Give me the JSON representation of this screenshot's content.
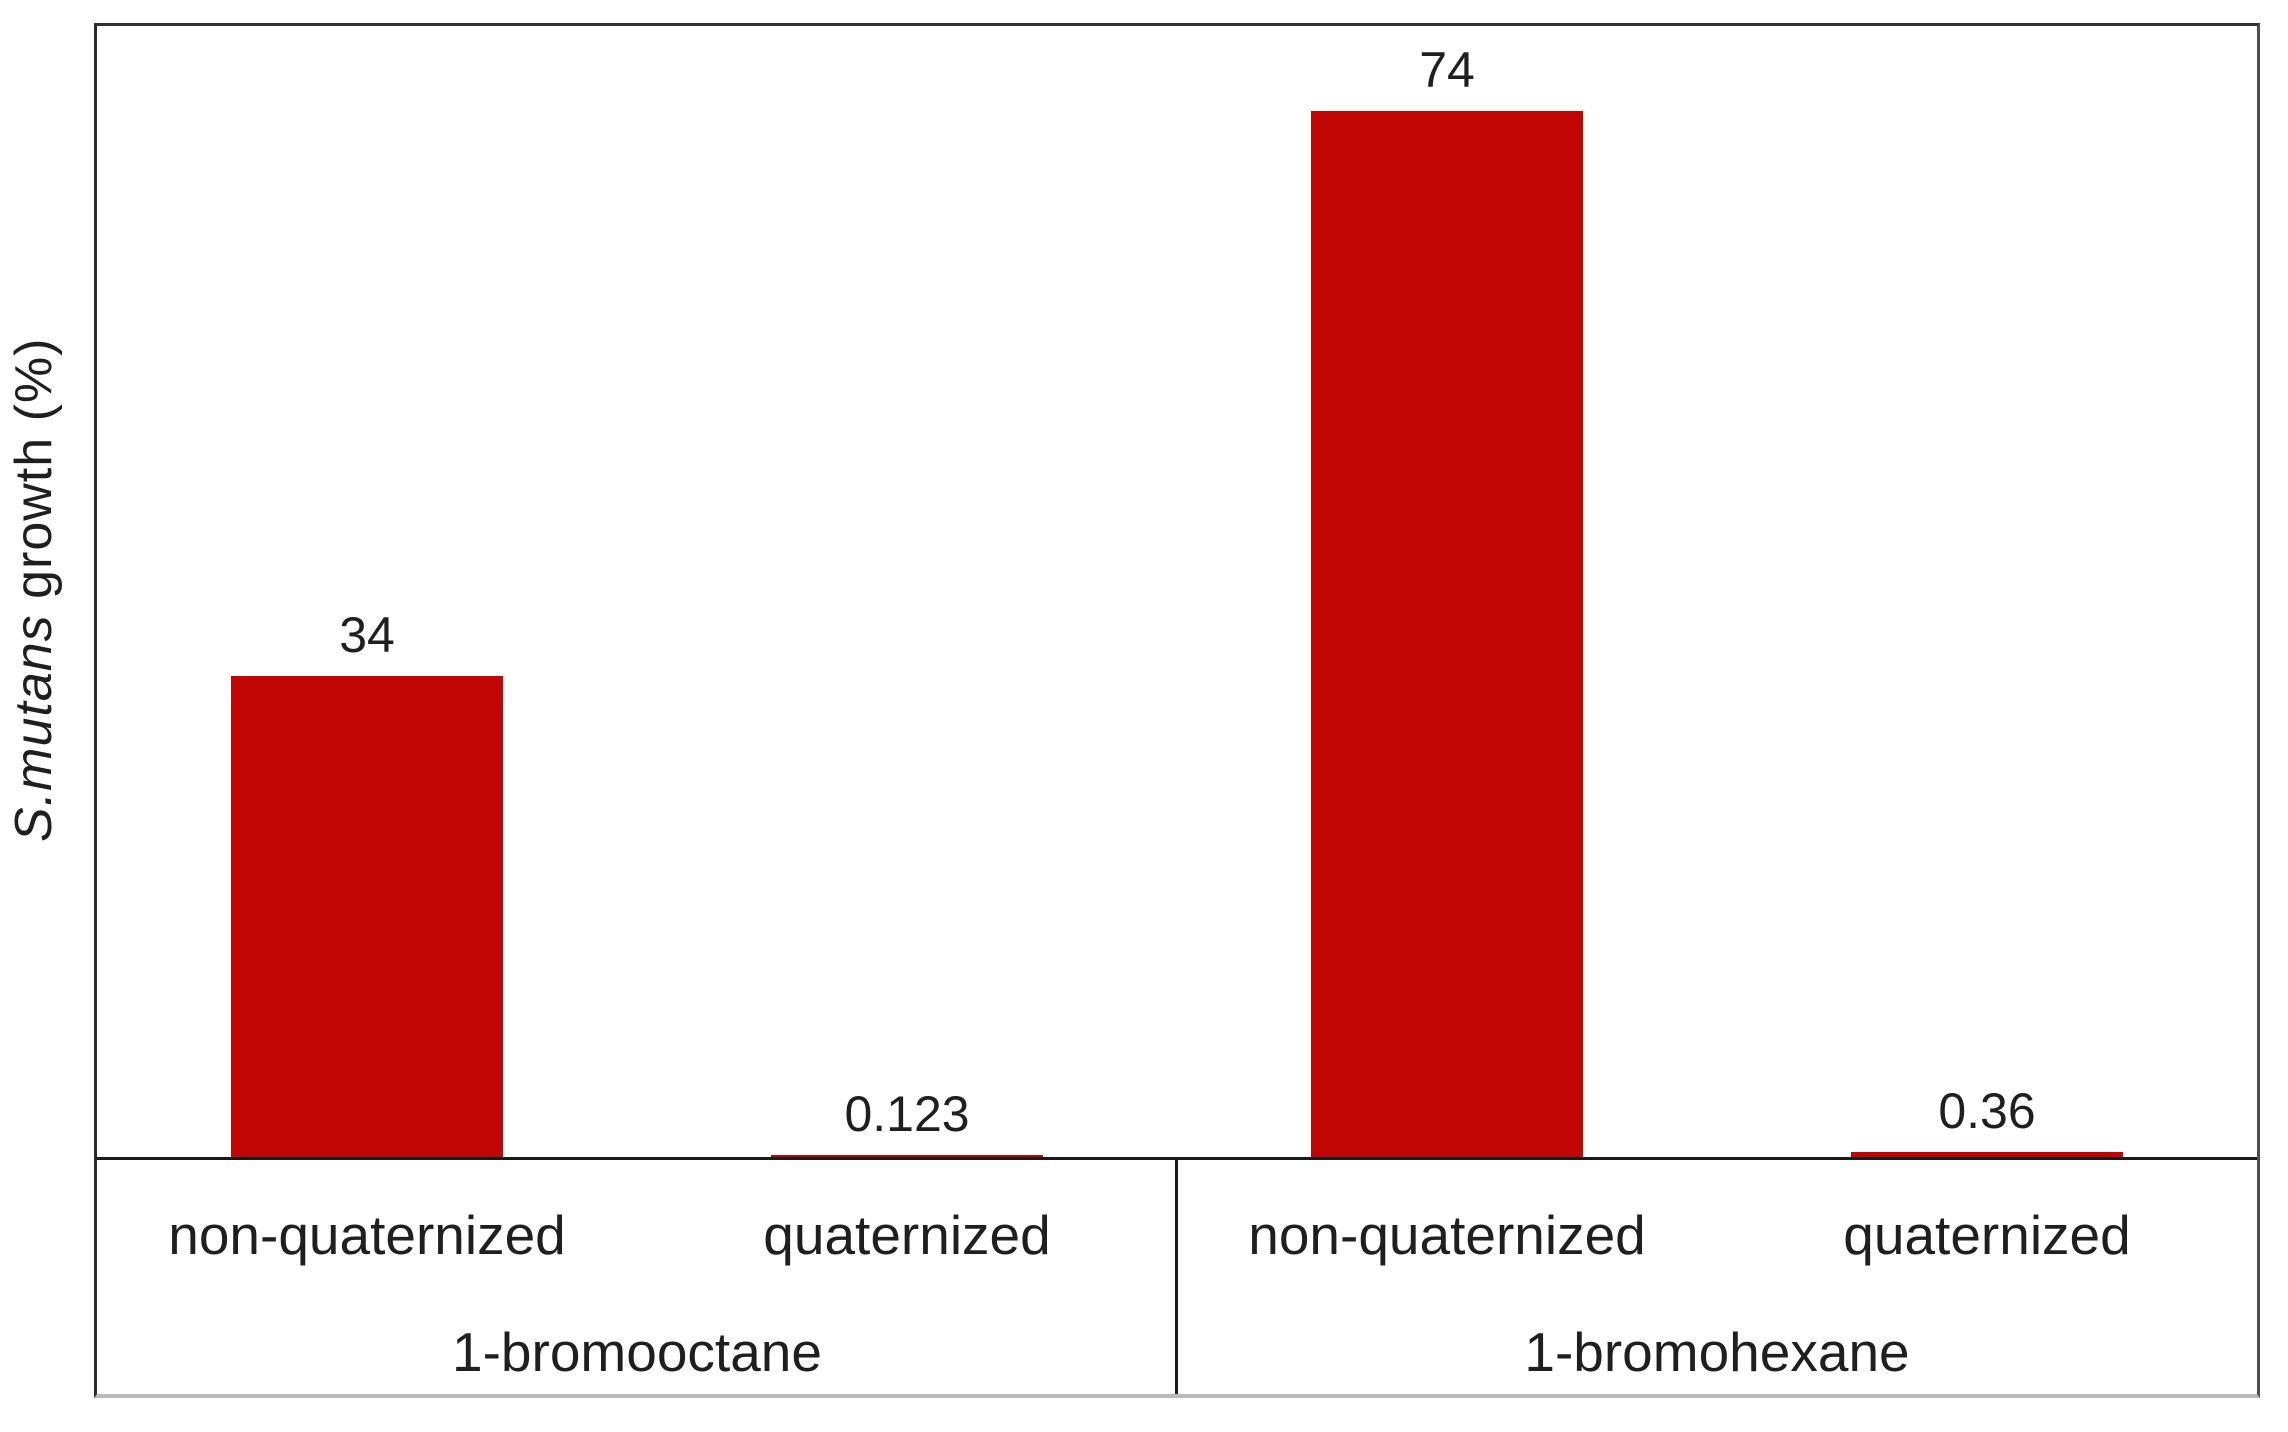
{
  "y_axis_label": {
    "italic_part": "S.mutans",
    "normal_part": " growth (%)"
  },
  "chart_data": {
    "type": "bar",
    "title": "",
    "xlabel": "",
    "ylabel": "S.mutans growth (%)",
    "ylabel_italic_segment": "S.mutans",
    "ylim": [
      0,
      80
    ],
    "grid": false,
    "legend": false,
    "axis_ticks_visible": false,
    "bar_color": "#c00505",
    "axis_color": "#1a1a1a",
    "groups": [
      {
        "label": "1-bromooctane",
        "categories": [
          "non-quaternized",
          "quaternized"
        ],
        "values": [
          34,
          0.123
        ]
      },
      {
        "label": "1-bromohexane",
        "categories": [
          "non-quaternized",
          "quaternized"
        ],
        "values": [
          74,
          0.36
        ]
      }
    ],
    "value_labels": [
      "34",
      "0.123",
      "74",
      "0.36"
    ]
  }
}
